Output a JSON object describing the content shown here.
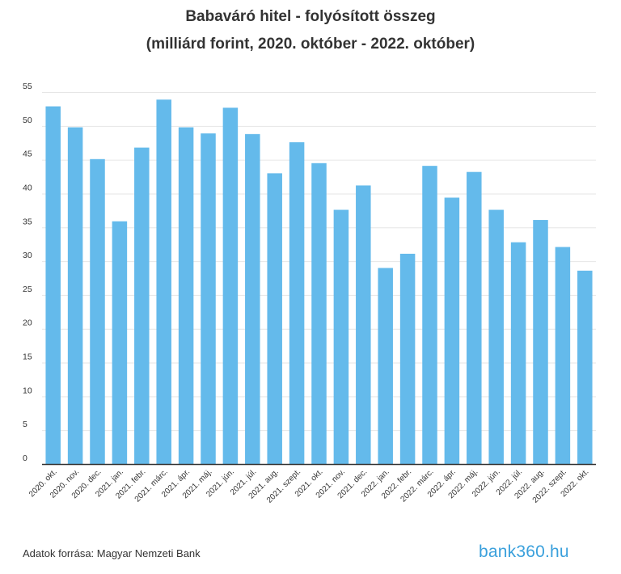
{
  "chart_data": {
    "type": "bar",
    "title": "Babaváró hitel - folyósított összeg",
    "subtitle": "(milliárd forint, 2020. október - 2022. október)",
    "xlabel": "",
    "ylabel": "",
    "ylim": [
      0,
      55
    ],
    "yticks": [
      0,
      5,
      10,
      15,
      20,
      25,
      30,
      35,
      40,
      45,
      50,
      55
    ],
    "grid": true,
    "bar_color": "#64baeb",
    "categories": [
      "2020. okt.",
      "2020. nov.",
      "2020. dec.",
      "2021. jan.",
      "2021. febr.",
      "2021. márc.",
      "2021. ápr.",
      "2021. máj.",
      "2021. jún.",
      "2021. júl.",
      "2021. aug.",
      "2021. szept.",
      "2021. okt.",
      "2021. nov.",
      "2021. dec.",
      "2022. jan.",
      "2022. febr.",
      "2022. márc.",
      "2022. ápr.",
      "2022. máj.",
      "2022. jún.",
      "2022. júl.",
      "2022. aug.",
      "2022. szept.",
      "2022. okt."
    ],
    "values": [
      52.9,
      49.8,
      45.1,
      35.9,
      46.8,
      53.9,
      49.8,
      48.9,
      52.7,
      48.8,
      43.0,
      47.6,
      44.5,
      37.6,
      41.2,
      29.0,
      31.1,
      44.1,
      39.4,
      43.2,
      37.6,
      32.8,
      36.1,
      32.1,
      28.6
    ]
  },
  "footer": {
    "source": "Adatok forrása: Magyar Nemzeti Bank",
    "brand": "bank360.hu"
  }
}
